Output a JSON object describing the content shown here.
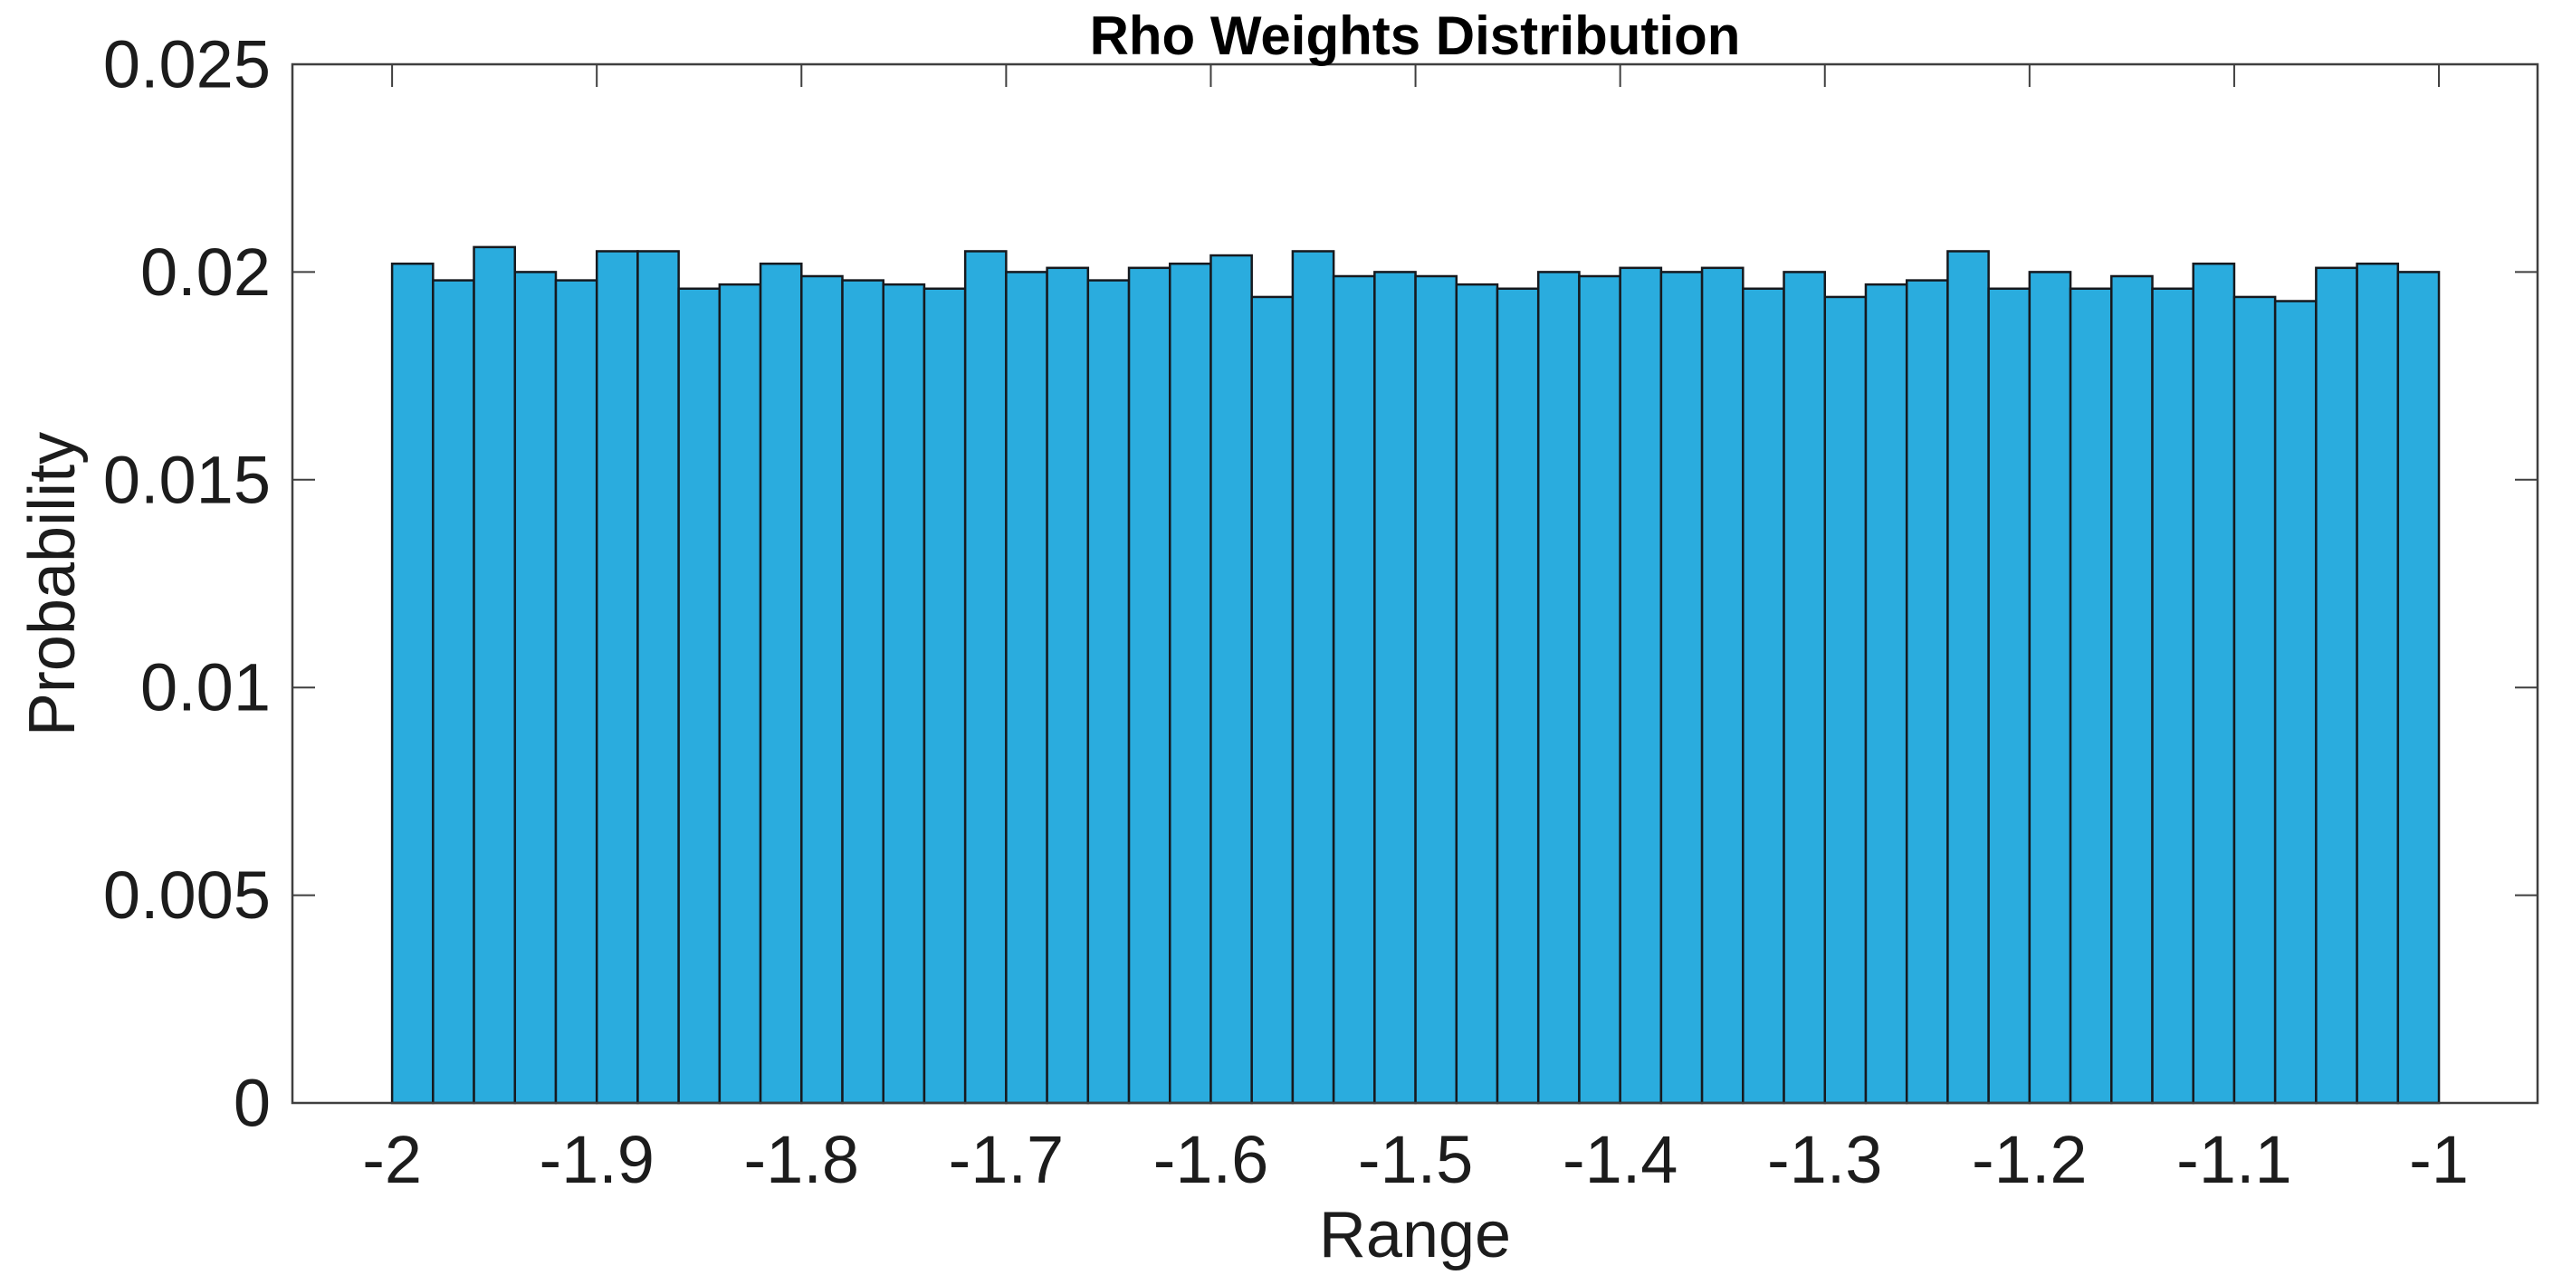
{
  "figure": {
    "background_color": "#FFFFFF",
    "plot_background_color": "#FFFFFF"
  },
  "chart_data": {
    "type": "bar",
    "subtype": "histogram",
    "title": "Rho Weights Distribution",
    "xlabel": "Range",
    "ylabel": "Probability",
    "normalization": "probability",
    "bin_start": -2.0,
    "bin_width": 0.02,
    "bin_count": 50,
    "values": [
      0.0202,
      0.0198,
      0.0206,
      0.02,
      0.0198,
      0.0205,
      0.0205,
      0.0196,
      0.0197,
      0.0202,
      0.0199,
      0.0198,
      0.0197,
      0.0196,
      0.0205,
      0.02,
      0.0201,
      0.0198,
      0.0201,
      0.0202,
      0.0204,
      0.0194,
      0.0205,
      0.0199,
      0.02,
      0.0199,
      0.0197,
      0.0196,
      0.02,
      0.0199,
      0.0201,
      0.02,
      0.0201,
      0.0196,
      0.02,
      0.0194,
      0.0197,
      0.0198,
      0.0205,
      0.0196,
      0.02,
      0.0196,
      0.0199,
      0.0196,
      0.0202,
      0.0194,
      0.0193,
      0.0201,
      0.0202,
      0.02
    ],
    "xlim": [
      -2.0487,
      -0.9518
    ],
    "ylim": [
      0,
      0.025
    ],
    "x_ticks": [
      -2.0,
      -1.9,
      -1.8,
      -1.7,
      -1.6,
      -1.5,
      -1.4,
      -1.3,
      -1.2,
      -1.1,
      -1.0
    ],
    "x_tick_labels": [
      "-2",
      "-1.9",
      "-1.8",
      "-1.7",
      "-1.6",
      "-1.5",
      "-1.4",
      "-1.3",
      "-1.2",
      "-1.1",
      "-1"
    ],
    "y_ticks": [
      0,
      0.005,
      0.01,
      0.015,
      0.02,
      0.025
    ],
    "y_tick_labels": [
      "0",
      "0.005",
      "0.01",
      "0.015",
      "0.02",
      "0.025"
    ],
    "grid": false,
    "box": true,
    "tick_direction": "in",
    "legend": null,
    "bar_face_color": "#2AACDE",
    "bar_edge_color": "#16191E",
    "axis_color": "#3F3F3F",
    "tick_label_color": "#1C1C1C",
    "title_color": "#000000"
  }
}
